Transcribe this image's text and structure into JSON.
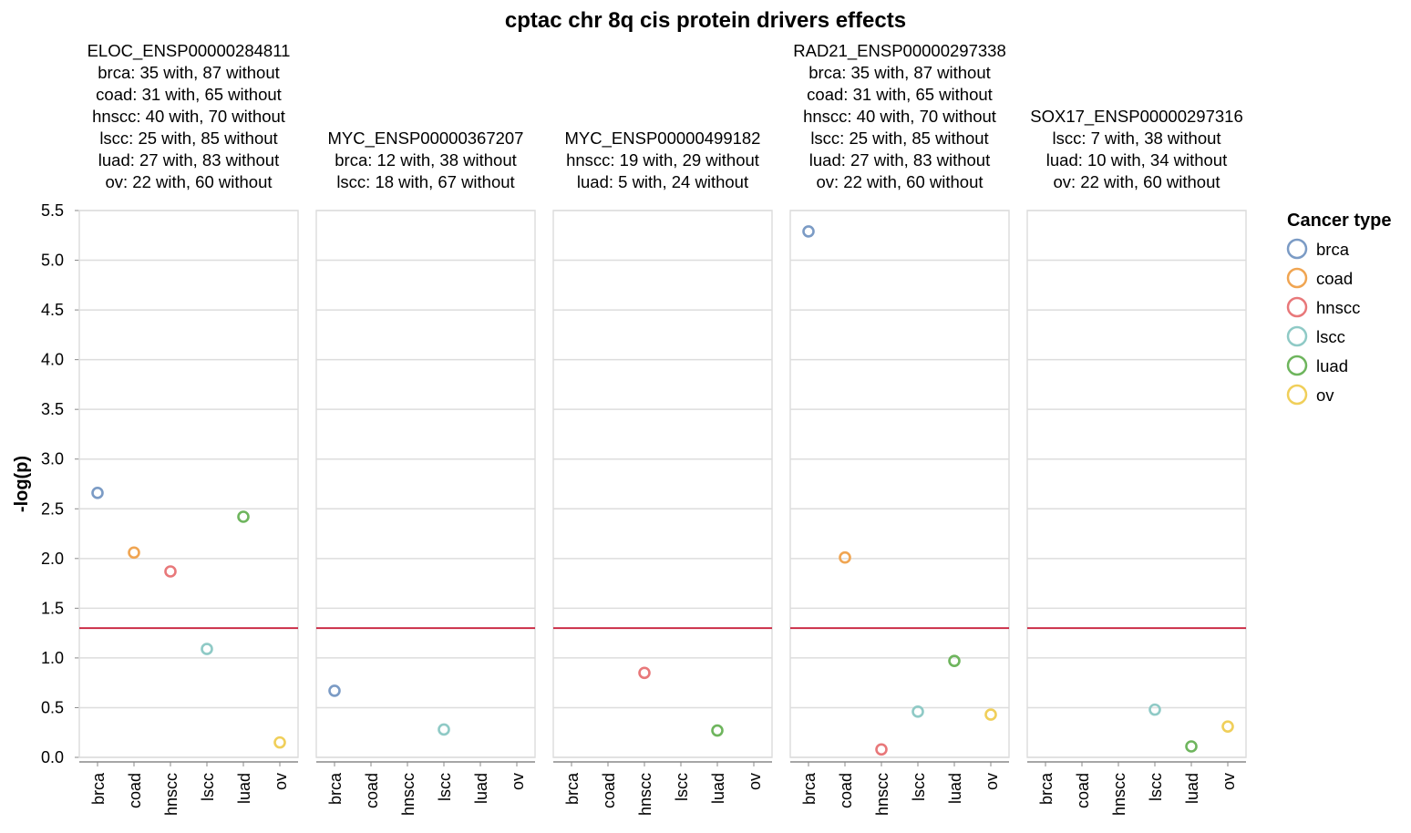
{
  "chart_data": {
    "type": "scatter",
    "title": "cptac chr 8q cis protein drivers effects",
    "ylabel": "-log(p)",
    "ylim": [
      0,
      5.5
    ],
    "yticks": [
      "0.0",
      "0.5",
      "1.0",
      "1.5",
      "2.0",
      "2.5",
      "3.0",
      "3.5",
      "4.0",
      "4.5",
      "5.0",
      "5.5"
    ],
    "categories": [
      "brca",
      "coad",
      "hnscc",
      "lscc",
      "luad",
      "ov"
    ],
    "threshold": 1.3,
    "threshold_color": "#c8203c",
    "grid": true,
    "legend": {
      "title": "Cancer type",
      "position": "right",
      "items": [
        {
          "name": "brca",
          "color": "#7b9bc5"
        },
        {
          "name": "coad",
          "color": "#f0a552"
        },
        {
          "name": "hnscc",
          "color": "#e8787a"
        },
        {
          "name": "lscc",
          "color": "#8fcac6"
        },
        {
          "name": "luad",
          "color": "#6eb55d"
        },
        {
          "name": "ov",
          "color": "#f0cf5a"
        }
      ]
    },
    "facets": [
      {
        "header": [
          "ELOC_ENSP00000284811",
          "brca: 35 with, 87 without",
          "coad: 31 with, 65 without",
          "hnscc: 40 with, 70 without",
          "lscc: 25 with, 85 without",
          "luad: 27 with, 83 without",
          "ov: 22 with, 60 without"
        ],
        "points": [
          {
            "cat": "brca",
            "y": 2.66
          },
          {
            "cat": "coad",
            "y": 2.06
          },
          {
            "cat": "hnscc",
            "y": 1.87
          },
          {
            "cat": "lscc",
            "y": 1.09
          },
          {
            "cat": "luad",
            "y": 2.42
          },
          {
            "cat": "ov",
            "y": 0.15
          }
        ]
      },
      {
        "header": [
          "MYC_ENSP00000367207",
          "brca: 12 with, 38 without",
          "lscc: 18 with, 67 without"
        ],
        "points": [
          {
            "cat": "brca",
            "y": 0.67
          },
          {
            "cat": "lscc",
            "y": 0.28
          }
        ]
      },
      {
        "header": [
          "MYC_ENSP00000499182",
          "hnscc: 19 with, 29 without",
          "luad: 5 with, 24 without"
        ],
        "points": [
          {
            "cat": "hnscc",
            "y": 0.85
          },
          {
            "cat": "luad",
            "y": 0.27
          }
        ]
      },
      {
        "header": [
          "RAD21_ENSP00000297338",
          "brca: 35 with, 87 without",
          "coad: 31 with, 65 without",
          "hnscc: 40 with, 70 without",
          "lscc: 25 with, 85 without",
          "luad: 27 with, 83 without",
          "ov: 22 with, 60 without"
        ],
        "points": [
          {
            "cat": "brca",
            "y": 5.29
          },
          {
            "cat": "coad",
            "y": 2.01
          },
          {
            "cat": "hnscc",
            "y": 0.08
          },
          {
            "cat": "lscc",
            "y": 0.46
          },
          {
            "cat": "luad",
            "y": 0.97
          },
          {
            "cat": "ov",
            "y": 0.43
          }
        ]
      },
      {
        "header": [
          "SOX17_ENSP00000297316",
          "lscc: 7 with, 38 without",
          "luad: 10 with, 34 without",
          "ov: 22 with, 60 without"
        ],
        "points": [
          {
            "cat": "lscc",
            "y": 0.48
          },
          {
            "cat": "luad",
            "y": 0.11
          },
          {
            "cat": "ov",
            "y": 0.31
          }
        ]
      }
    ]
  }
}
